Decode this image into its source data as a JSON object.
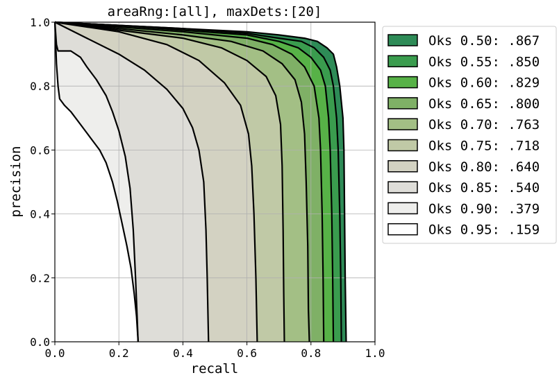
{
  "chart_data": {
    "type": "area",
    "title": "areaRng:[all], maxDets:[20]",
    "xlabel": "recall",
    "ylabel": "precision",
    "xlim": [
      0,
      1
    ],
    "ylim": [
      0,
      1
    ],
    "x_ticks": [
      "0.0",
      "0.2",
      "0.4",
      "0.6",
      "0.8",
      "1.0"
    ],
    "y_ticks": [
      "0.0",
      "0.2",
      "0.4",
      "0.6",
      "0.8",
      "1.0"
    ],
    "grid": true,
    "legend_position": "outside-right-top",
    "series": [
      {
        "name": "Oks 0.50: .867",
        "color": "#2e8b57",
        "points": [
          [
            0,
            1
          ],
          [
            0.2,
            0.99
          ],
          [
            0.4,
            0.98
          ],
          [
            0.6,
            0.97
          ],
          [
            0.7,
            0.96
          ],
          [
            0.78,
            0.95
          ],
          [
            0.82,
            0.94
          ],
          [
            0.85,
            0.92
          ],
          [
            0.87,
            0.9
          ],
          [
            0.88,
            0.86
          ],
          [
            0.89,
            0.8
          ],
          [
            0.9,
            0.7
          ],
          [
            0.903,
            0.6
          ],
          [
            0.905,
            0.4
          ],
          [
            0.907,
            0.2
          ],
          [
            0.91,
            0
          ]
        ]
      },
      {
        "name": "Oks 0.55: .850",
        "color": "#3a9c4e",
        "points": [
          [
            0,
            1
          ],
          [
            0.2,
            0.99
          ],
          [
            0.4,
            0.98
          ],
          [
            0.6,
            0.965
          ],
          [
            0.7,
            0.95
          ],
          [
            0.77,
            0.94
          ],
          [
            0.81,
            0.92
          ],
          [
            0.84,
            0.89
          ],
          [
            0.86,
            0.85
          ],
          [
            0.87,
            0.8
          ],
          [
            0.88,
            0.7
          ],
          [
            0.885,
            0.6
          ],
          [
            0.89,
            0.4
          ],
          [
            0.893,
            0.2
          ],
          [
            0.895,
            0
          ]
        ]
      },
      {
        "name": "Oks 0.60: .829",
        "color": "#57b247",
        "points": [
          [
            0,
            1
          ],
          [
            0.2,
            0.99
          ],
          [
            0.4,
            0.975
          ],
          [
            0.6,
            0.96
          ],
          [
            0.7,
            0.94
          ],
          [
            0.76,
            0.92
          ],
          [
            0.8,
            0.89
          ],
          [
            0.83,
            0.85
          ],
          [
            0.845,
            0.8
          ],
          [
            0.855,
            0.7
          ],
          [
            0.86,
            0.6
          ],
          [
            0.865,
            0.4
          ],
          [
            0.868,
            0.2
          ],
          [
            0.87,
            0
          ]
        ]
      },
      {
        "name": "Oks 0.65: .800",
        "color": "#7fb066",
        "points": [
          [
            0,
            1
          ],
          [
            0.2,
            0.985
          ],
          [
            0.4,
            0.97
          ],
          [
            0.6,
            0.95
          ],
          [
            0.68,
            0.93
          ],
          [
            0.74,
            0.9
          ],
          [
            0.78,
            0.86
          ],
          [
            0.81,
            0.8
          ],
          [
            0.825,
            0.7
          ],
          [
            0.83,
            0.6
          ],
          [
            0.835,
            0.4
          ],
          [
            0.838,
            0.2
          ],
          [
            0.84,
            0
          ]
        ]
      },
      {
        "name": "Oks 0.70: .763",
        "color": "#a3bf85",
        "points": [
          [
            0,
            1
          ],
          [
            0.2,
            0.98
          ],
          [
            0.4,
            0.96
          ],
          [
            0.55,
            0.94
          ],
          [
            0.65,
            0.91
          ],
          [
            0.71,
            0.87
          ],
          [
            0.75,
            0.82
          ],
          [
            0.77,
            0.75
          ],
          [
            0.78,
            0.65
          ],
          [
            0.785,
            0.5
          ],
          [
            0.79,
            0.3
          ],
          [
            0.792,
            0.1
          ],
          [
            0.795,
            0
          ]
        ]
      },
      {
        "name": "Oks 0.75: .718",
        "color": "#c0c9a6",
        "points": [
          [
            0,
            1
          ],
          [
            0.2,
            0.975
          ],
          [
            0.4,
            0.95
          ],
          [
            0.52,
            0.92
          ],
          [
            0.6,
            0.88
          ],
          [
            0.66,
            0.83
          ],
          [
            0.69,
            0.77
          ],
          [
            0.705,
            0.68
          ],
          [
            0.71,
            0.55
          ],
          [
            0.713,
            0.35
          ],
          [
            0.715,
            0.15
          ],
          [
            0.717,
            0
          ]
        ]
      },
      {
        "name": "Oks 0.80: .640",
        "color": "#d3d2c2",
        "points": [
          [
            0,
            1
          ],
          [
            0.2,
            0.97
          ],
          [
            0.35,
            0.93
          ],
          [
            0.45,
            0.88
          ],
          [
            0.53,
            0.81
          ],
          [
            0.58,
            0.74
          ],
          [
            0.605,
            0.65
          ],
          [
            0.615,
            0.55
          ],
          [
            0.622,
            0.4
          ],
          [
            0.628,
            0.2
          ],
          [
            0.632,
            0
          ]
        ]
      },
      {
        "name": "Oks 0.85: .540",
        "color": "#deddd8",
        "points": [
          [
            0,
            1
          ],
          [
            0.1,
            0.95
          ],
          [
            0.2,
            0.9
          ],
          [
            0.28,
            0.85
          ],
          [
            0.35,
            0.79
          ],
          [
            0.4,
            0.73
          ],
          [
            0.43,
            0.67
          ],
          [
            0.45,
            0.6
          ],
          [
            0.465,
            0.5
          ],
          [
            0.472,
            0.35
          ],
          [
            0.476,
            0.2
          ],
          [
            0.48,
            0
          ]
        ]
      },
      {
        "name": "Oks 0.90: .379",
        "color": "#eeeeec",
        "points": [
          [
            0,
            1
          ],
          [
            0.005,
            0.93
          ],
          [
            0.01,
            0.91
          ],
          [
            0.05,
            0.91
          ],
          [
            0.08,
            0.89
          ],
          [
            0.1,
            0.86
          ],
          [
            0.13,
            0.82
          ],
          [
            0.16,
            0.77
          ],
          [
            0.18,
            0.72
          ],
          [
            0.2,
            0.66
          ],
          [
            0.22,
            0.58
          ],
          [
            0.235,
            0.48
          ],
          [
            0.245,
            0.35
          ],
          [
            0.252,
            0.2
          ],
          [
            0.26,
            0
          ]
        ]
      },
      {
        "name": "Oks 0.95: .159",
        "color": "#ffffff",
        "points": [
          [
            0,
            1
          ],
          [
            0.002,
            0.95
          ],
          [
            0.005,
            0.87
          ],
          [
            0.01,
            0.8
          ],
          [
            0.015,
            0.76
          ],
          [
            0.03,
            0.74
          ],
          [
            0.05,
            0.72
          ],
          [
            0.08,
            0.68
          ],
          [
            0.11,
            0.64
          ],
          [
            0.14,
            0.6
          ],
          [
            0.16,
            0.56
          ],
          [
            0.18,
            0.5
          ],
          [
            0.195,
            0.44
          ],
          [
            0.21,
            0.37
          ],
          [
            0.225,
            0.3
          ],
          [
            0.238,
            0.23
          ],
          [
            0.248,
            0.15
          ],
          [
            0.255,
            0.08
          ],
          [
            0.26,
            0
          ]
        ]
      }
    ]
  }
}
